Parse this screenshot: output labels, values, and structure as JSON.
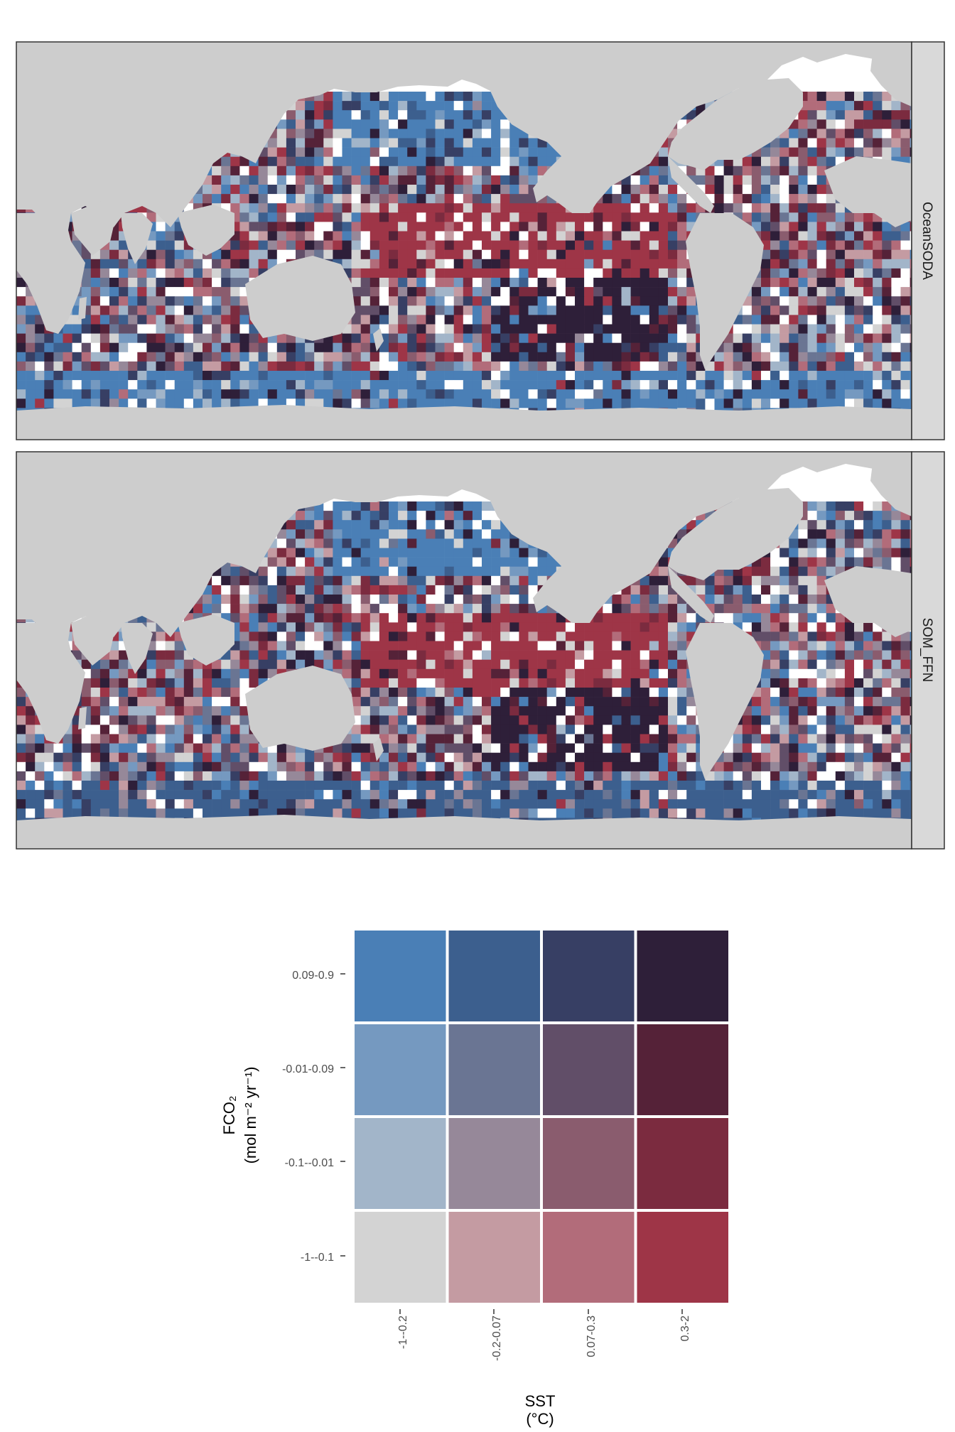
{
  "colors": {
    "land": "#cdcdcd",
    "ocean_empty": "#ffffff",
    "strip_bg": "#d9d9d9",
    "frame": "#333333"
  },
  "panels": [
    {
      "label": "OceanSODA"
    },
    {
      "label": "SOM_FFN"
    }
  ],
  "legend": {
    "x_title": "SST",
    "x_unit": "(°C)",
    "y_title": "FCO₂",
    "y_unit": "(mol m⁻² yr⁻¹)",
    "x_ticks": [
      "-1--0.2",
      "-0.2-0.07",
      "0.07-0.3",
      "0.3-2"
    ],
    "y_ticks": [
      "-1--0.1",
      "-0.1--0.01",
      "-0.01-0.09",
      "0.09-0.9"
    ],
    "palette": [
      [
        "#d3d3d3",
        "#c49ba2",
        "#b26c7a",
        "#9e3547"
      ],
      [
        "#a2b5c9",
        "#968899",
        "#8a5c6e",
        "#7b2b3f"
      ],
      [
        "#7599c0",
        "#6a7593",
        "#614e68",
        "#552238"
      ],
      [
        "#4a7fb6",
        "#3c5f8e",
        "#373f64",
        "#2e1f39"
      ]
    ]
  }
}
